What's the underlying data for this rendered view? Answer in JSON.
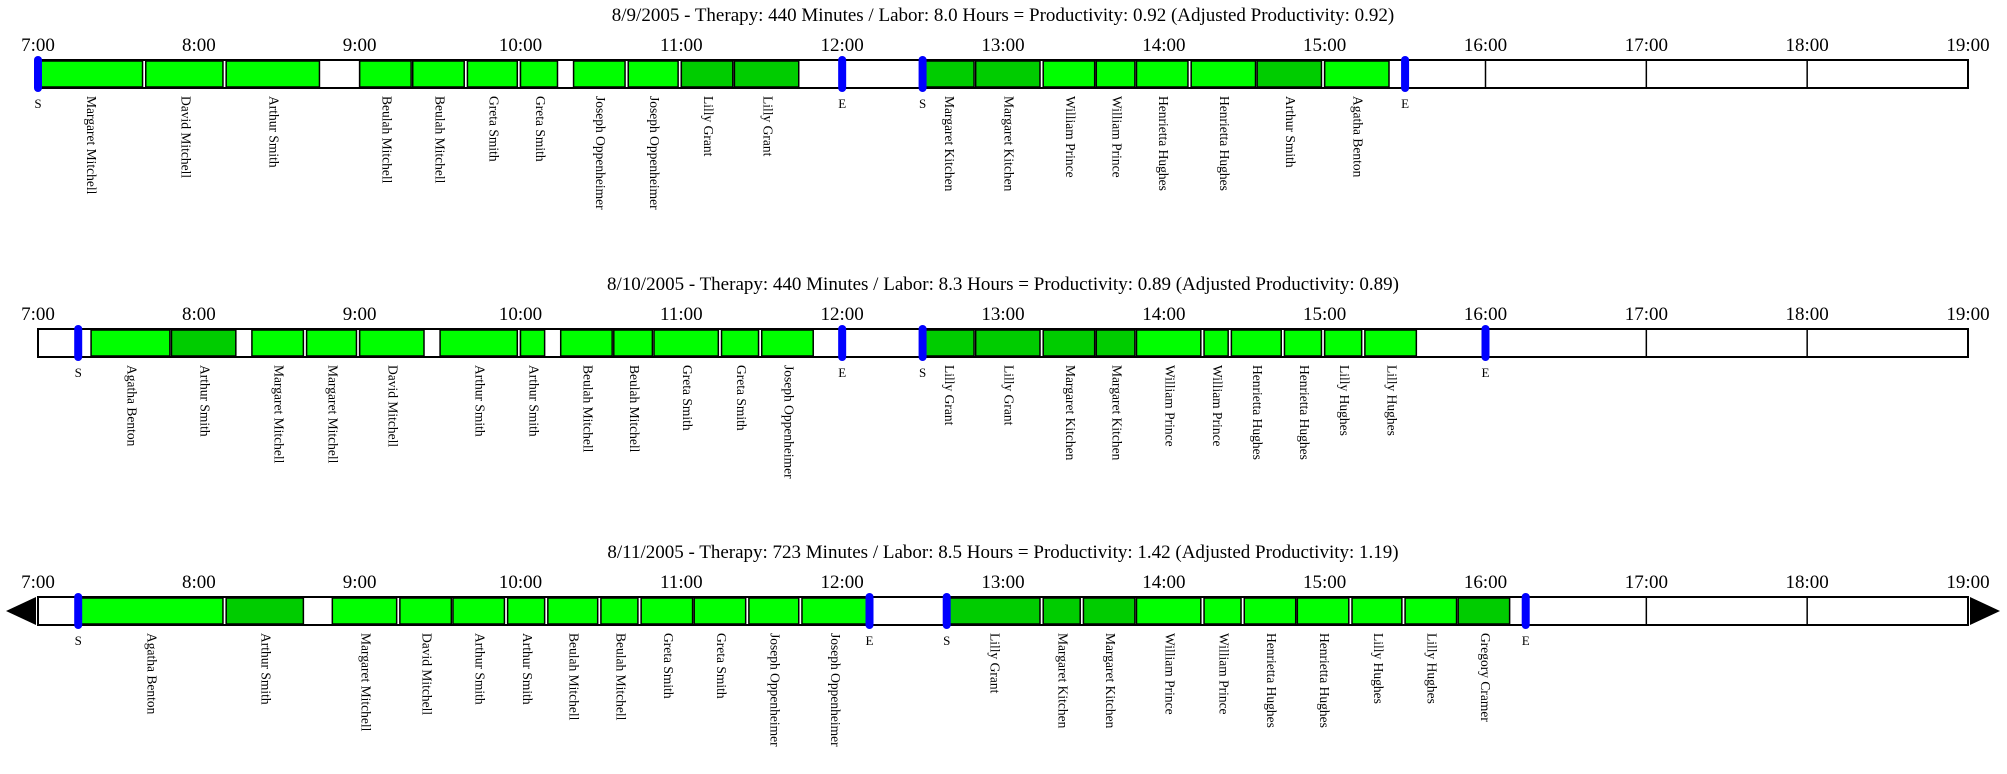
{
  "colors": {
    "normal": "#00ff00",
    "dark": "#00cc00",
    "marker": "#0000ff",
    "outline": "#000000"
  },
  "hours": [
    "7:00",
    "8:00",
    "9:00",
    "10:00",
    "11:00",
    "12:00",
    "13:00",
    "14:00",
    "15:00",
    "16:00",
    "17:00",
    "18:00",
    "19:00"
  ],
  "chart_data": [
    {
      "type": "timeline",
      "title": "8/9/2005 - Therapy: 440 Minutes / Labor: 8.0 Hours = Productivity: 0.92   (Adjusted Productivity: 0.92)",
      "xlim": [
        "7:00",
        "19:00"
      ],
      "arrows": false,
      "markers": [
        {
          "label": "S",
          "time": 7.0
        },
        {
          "label": "E",
          "time": 12.0
        },
        {
          "label": "S",
          "time": 12.5
        },
        {
          "label": "E",
          "time": 15.5
        }
      ],
      "sessions": [
        {
          "name": "Margaret Mitchell",
          "start": 7.0,
          "end": 7.65,
          "dark": false
        },
        {
          "name": "David Mitchell",
          "start": 7.67,
          "end": 8.15,
          "dark": false
        },
        {
          "name": "Arthur Smith",
          "start": 8.17,
          "end": 8.75,
          "dark": false
        },
        {
          "name": "Beulah Mitchell",
          "start": 9.0,
          "end": 9.32,
          "dark": false
        },
        {
          "name": "Beulah Mitchell",
          "start": 9.33,
          "end": 9.65,
          "dark": false
        },
        {
          "name": "Greta Smith",
          "start": 9.67,
          "end": 9.98,
          "dark": false
        },
        {
          "name": "Greta Smith",
          "start": 10.0,
          "end": 10.23,
          "dark": false
        },
        {
          "name": "Joseph Oppenheimer",
          "start": 10.33,
          "end": 10.65,
          "dark": false
        },
        {
          "name": "Joseph Oppenheimer",
          "start": 10.67,
          "end": 10.98,
          "dark": false
        },
        {
          "name": "Lilly Grant",
          "start": 11.0,
          "end": 11.32,
          "dark": true
        },
        {
          "name": "Lilly Grant",
          "start": 11.33,
          "end": 11.73,
          "dark": true
        },
        {
          "name": "Margaret Kitchen",
          "start": 12.5,
          "end": 12.82,
          "dark": true
        },
        {
          "name": "Margaret Kitchen",
          "start": 12.83,
          "end": 13.23,
          "dark": true
        },
        {
          "name": "William Prince",
          "start": 13.25,
          "end": 13.57,
          "dark": false
        },
        {
          "name": "William Prince",
          "start": 13.58,
          "end": 13.82,
          "dark": false
        },
        {
          "name": "Henrietta Hughes",
          "start": 13.83,
          "end": 14.15,
          "dark": false
        },
        {
          "name": "Henrietta Hughes",
          "start": 14.17,
          "end": 14.57,
          "dark": false
        },
        {
          "name": "Arthur Smith",
          "start": 14.58,
          "end": 14.98,
          "dark": true
        },
        {
          "name": "Agatha Benton",
          "start": 15.0,
          "end": 15.4,
          "dark": false
        }
      ]
    },
    {
      "type": "timeline",
      "title": "8/10/2005 - Therapy: 440 Minutes / Labor: 8.3 Hours = Productivity: 0.89   (Adjusted Productivity: 0.89)",
      "xlim": [
        "7:00",
        "19:00"
      ],
      "arrows": false,
      "markers": [
        {
          "label": "S",
          "time": 7.25
        },
        {
          "label": "E",
          "time": 12.0
        },
        {
          "label": "S",
          "time": 12.5
        },
        {
          "label": "E",
          "time": 16.0
        }
      ],
      "sessions": [
        {
          "name": "Agatha Benton",
          "start": 7.33,
          "end": 7.82,
          "dark": false
        },
        {
          "name": "Arthur Smith",
          "start": 7.83,
          "end": 8.23,
          "dark": true
        },
        {
          "name": "Margaret Mitchell",
          "start": 8.33,
          "end": 8.65,
          "dark": false
        },
        {
          "name": "Margaret Mitchell",
          "start": 8.67,
          "end": 8.98,
          "dark": false
        },
        {
          "name": "David Mitchell",
          "start": 9.0,
          "end": 9.4,
          "dark": false
        },
        {
          "name": "Arthur Smith",
          "start": 9.5,
          "end": 9.98,
          "dark": false
        },
        {
          "name": "Arthur Smith",
          "start": 10.0,
          "end": 10.15,
          "dark": false
        },
        {
          "name": "Beulah Mitchell",
          "start": 10.25,
          "end": 10.57,
          "dark": false
        },
        {
          "name": "Beulah Mitchell",
          "start": 10.58,
          "end": 10.82,
          "dark": false
        },
        {
          "name": "Greta Smith",
          "start": 10.83,
          "end": 11.23,
          "dark": false
        },
        {
          "name": "Greta Smith",
          "start": 11.25,
          "end": 11.48,
          "dark": false
        },
        {
          "name": "Joseph Oppenheimer",
          "start": 11.5,
          "end": 11.82,
          "dark": false
        },
        {
          "name": "Lilly Grant",
          "start": 12.5,
          "end": 12.82,
          "dark": true
        },
        {
          "name": "Lilly Grant",
          "start": 12.83,
          "end": 13.23,
          "dark": true
        },
        {
          "name": "Margaret Kitchen",
          "start": 13.25,
          "end": 13.57,
          "dark": true
        },
        {
          "name": "Margaret Kitchen",
          "start": 13.58,
          "end": 13.82,
          "dark": true
        },
        {
          "name": "William Prince",
          "start": 13.83,
          "end": 14.23,
          "dark": false
        },
        {
          "name": "William Prince",
          "start": 14.25,
          "end": 14.4,
          "dark": false
        },
        {
          "name": "Henrietta Hughes",
          "start": 14.42,
          "end": 14.73,
          "dark": false
        },
        {
          "name": "Henrietta Hughes",
          "start": 14.75,
          "end": 14.98,
          "dark": false
        },
        {
          "name": "Lilly Hughes",
          "start": 15.0,
          "end": 15.23,
          "dark": false
        },
        {
          "name": "Lilly Hughes",
          "start": 15.25,
          "end": 15.57,
          "dark": false
        }
      ]
    },
    {
      "type": "timeline",
      "title": "8/11/2005 - Therapy: 723 Minutes / Labor: 8.5 Hours = Productivity: 1.42   (Adjusted Productivity: 1.19)",
      "xlim": [
        "7:00",
        "19:00"
      ],
      "arrows": true,
      "markers": [
        {
          "label": "S",
          "time": 7.25
        },
        {
          "label": "E",
          "time": 12.17
        },
        {
          "label": "S",
          "time": 12.65
        },
        {
          "label": "E",
          "time": 16.25
        }
      ],
      "sessions": [
        {
          "name": "Agatha Benton",
          "start": 7.25,
          "end": 8.15,
          "dark": false
        },
        {
          "name": "Arthur Smith",
          "start": 8.17,
          "end": 8.65,
          "dark": true
        },
        {
          "name": "Margaret Mitchell",
          "start": 8.83,
          "end": 9.23,
          "dark": false
        },
        {
          "name": "David Mitchell",
          "start": 9.25,
          "end": 9.57,
          "dark": false
        },
        {
          "name": "Arthur Smith",
          "start": 9.58,
          "end": 9.9,
          "dark": false
        },
        {
          "name": "Arthur Smith",
          "start": 9.92,
          "end": 10.15,
          "dark": false
        },
        {
          "name": "Beulah Mitchell",
          "start": 10.17,
          "end": 10.48,
          "dark": false
        },
        {
          "name": "Beulah Mitchell",
          "start": 10.5,
          "end": 10.73,
          "dark": false
        },
        {
          "name": "Greta Smith",
          "start": 10.75,
          "end": 11.07,
          "dark": false
        },
        {
          "name": "Greta Smith",
          "start": 11.08,
          "end": 11.4,
          "dark": false
        },
        {
          "name": "Joseph Oppenheimer",
          "start": 11.42,
          "end": 11.73,
          "dark": false
        },
        {
          "name": "Joseph Oppenheimer",
          "start": 11.75,
          "end": 12.15,
          "dark": false
        },
        {
          "name": "Lilly Grant",
          "start": 12.65,
          "end": 13.23,
          "dark": true
        },
        {
          "name": "Margaret Kitchen",
          "start": 13.25,
          "end": 13.48,
          "dark": true
        },
        {
          "name": "Margaret Kitchen",
          "start": 13.5,
          "end": 13.82,
          "dark": true
        },
        {
          "name": "William Prince",
          "start": 13.83,
          "end": 14.23,
          "dark": false
        },
        {
          "name": "William Prince",
          "start": 14.25,
          "end": 14.48,
          "dark": false
        },
        {
          "name": "Henrietta Hughes",
          "start": 14.5,
          "end": 14.82,
          "dark": false
        },
        {
          "name": "Henrietta Hughes",
          "start": 14.83,
          "end": 15.15,
          "dark": false
        },
        {
          "name": "Lilly Hughes",
          "start": 15.17,
          "end": 15.48,
          "dark": false
        },
        {
          "name": "Lilly Hughes",
          "start": 15.5,
          "end": 15.82,
          "dark": false
        },
        {
          "name": "Gregory Cramer",
          "start": 15.83,
          "end": 16.15,
          "dark": true
        }
      ]
    }
  ]
}
